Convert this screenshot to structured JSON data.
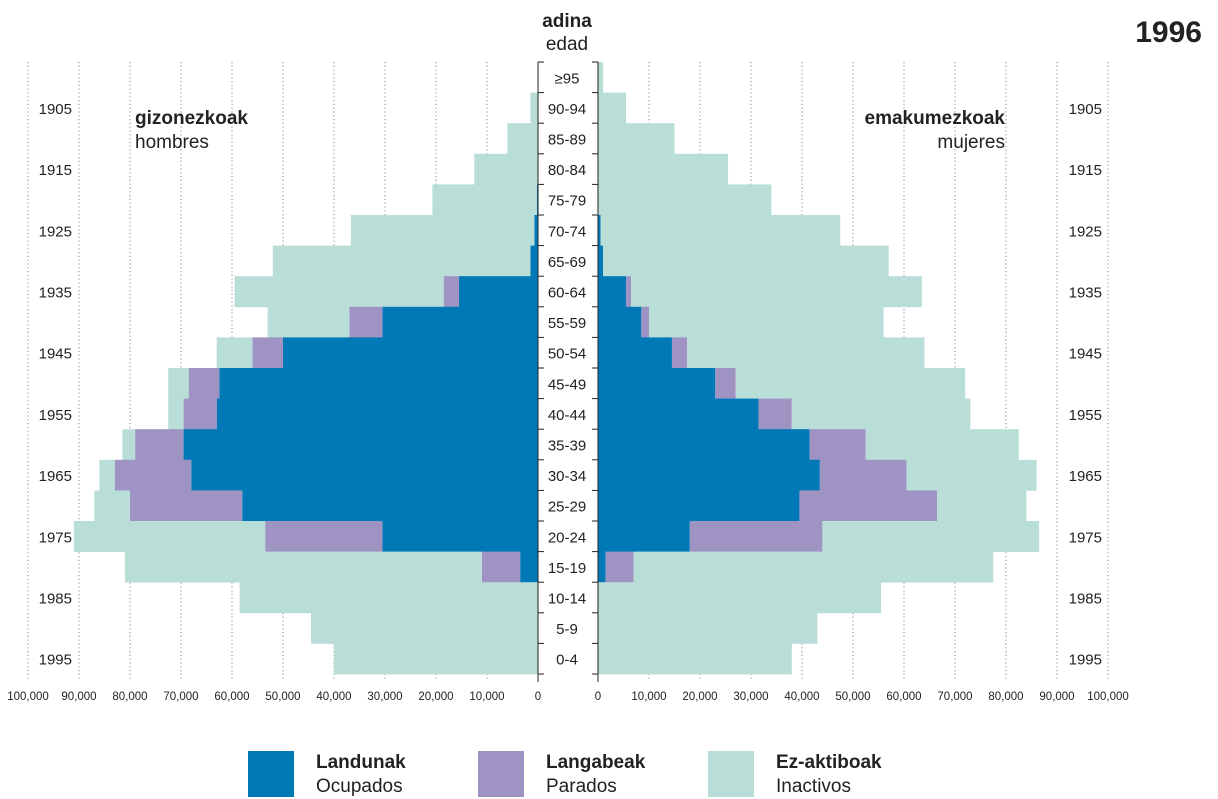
{
  "year": "1996",
  "center_header": {
    "line1": "adina",
    "line2": "edad"
  },
  "left_title": {
    "line1": "gizonezkoak",
    "line2": "hombres"
  },
  "right_title": {
    "line1": "emakumezkoak",
    "line2": "mujeres"
  },
  "birth_years": [
    "1905",
    "1915",
    "1925",
    "1935",
    "1945",
    "1955",
    "1965",
    "1975",
    "1985",
    "1995"
  ],
  "legend": [
    {
      "line1": "Landunak",
      "line2": "Ocupados",
      "color": "#0079b6"
    },
    {
      "line1": "Langabeak",
      "line2": "Parados",
      "color": "#9f93c4"
    },
    {
      "line1": "Ez-aktiboak",
      "line2": "Inactivos",
      "color": "#b8ded7"
    }
  ],
  "chart_data": {
    "type": "bar",
    "subtype": "population-pyramid-stacked",
    "title": "1996",
    "age_groups": [
      ">95",
      "90-94",
      "85-89",
      "80-84",
      "75-79",
      "70-74",
      "65-69",
      "60-64",
      "55-59",
      "50-54",
      "45-49",
      "40-44",
      "35-39",
      "30-34",
      "25-29",
      "20-24",
      "15-19",
      "10-14",
      "5-9",
      "0-4"
    ],
    "age_labels": [
      "≥95",
      "90-94",
      "85-89",
      "80-84",
      "75-79",
      "70-74",
      "65-69",
      "60-64",
      "55-59",
      "50-54",
      "45-49",
      "40-44",
      "35-39",
      "30-34",
      "25-29",
      "20-24",
      "15-19",
      "10-14",
      "5-9",
      "0-4"
    ],
    "x_ticks_left": [
      "100,000",
      "90,000",
      "80,000",
      "70,000",
      "60,000",
      "50,000",
      "40,000",
      "30,000",
      "20,000",
      "10,000",
      "0"
    ],
    "x_ticks_right": [
      "0",
      "10,000",
      "20,000",
      "30,000",
      "40,000",
      "50,000",
      "60,000",
      "70,000",
      "80,000",
      "90,000",
      "100,000"
    ],
    "xlim": [
      0,
      100000
    ],
    "grid": true,
    "series_colors": {
      "employed": "#0079b6",
      "unemployed": "#9f93c4",
      "inactive": "#b8ded7"
    },
    "men": {
      "employed": [
        0,
        0,
        0,
        0,
        200,
        700,
        1500,
        15500,
        30500,
        50000,
        62500,
        63000,
        69500,
        68000,
        58000,
        30500,
        3500,
        0,
        0,
        0
      ],
      "unemployed": [
        0,
        0,
        0,
        0,
        0,
        0,
        0,
        3000,
        6500,
        6000,
        6000,
        6500,
        9500,
        15000,
        22000,
        23000,
        7500,
        0,
        0,
        0
      ],
      "inactive": [
        0,
        1500,
        6000,
        12500,
        20500,
        36000,
        50500,
        41000,
        16000,
        7000,
        4000,
        3000,
        2500,
        3000,
        7000,
        37500,
        70000,
        58500,
        44500,
        40000
      ]
    },
    "women": {
      "employed": [
        0,
        0,
        0,
        0,
        0,
        500,
        1000,
        5500,
        8500,
        14500,
        23000,
        31500,
        41500,
        43500,
        39500,
        18000,
        1500,
        0,
        0,
        0
      ],
      "unemployed": [
        0,
        0,
        0,
        0,
        0,
        0,
        0,
        1000,
        1500,
        3000,
        4000,
        6500,
        11000,
        17000,
        27000,
        26000,
        5500,
        0,
        0,
        0
      ],
      "inactive": [
        1000,
        5500,
        15000,
        25500,
        34000,
        47000,
        56000,
        57000,
        46000,
        46500,
        45000,
        35000,
        30000,
        25500,
        17500,
        42500,
        70500,
        55500,
        43000,
        38000
      ]
    }
  }
}
